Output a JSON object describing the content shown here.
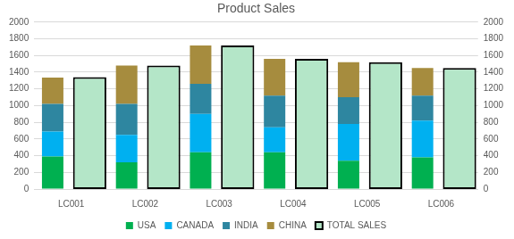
{
  "chart_data": {
    "type": "bar",
    "title": "Product Sales",
    "categories": [
      "LC001",
      "LC002",
      "LC003",
      "LC004",
      "LC005",
      "LC006"
    ],
    "series": [
      {
        "name": "USA",
        "color": "#00b050",
        "values": [
          390,
          320,
          440,
          440,
          340,
          380
        ]
      },
      {
        "name": "CANADA",
        "color": "#00b0f0",
        "values": [
          300,
          330,
          460,
          300,
          440,
          440
        ]
      },
      {
        "name": "INDIA",
        "color": "#2e86a0",
        "values": [
          330,
          370,
          360,
          380,
          320,
          300
        ]
      },
      {
        "name": "CHINA",
        "color": "#a68c3e",
        "values": [
          315,
          460,
          460,
          440,
          420,
          330
        ]
      },
      {
        "name": "TOTAL SALES",
        "color": "#b4e6c8",
        "axis": "y2",
        "values": [
          1340,
          1480,
          1720,
          1560,
          1520,
          1450
        ]
      }
    ],
    "stacked": true,
    "ylim": [
      0,
      2000
    ],
    "yticks": [
      0,
      200,
      400,
      600,
      800,
      1000,
      1200,
      1400,
      1600,
      1800,
      2000
    ],
    "y2lim": [
      0,
      2000
    ],
    "y2ticks": [
      0,
      200,
      400,
      600,
      800,
      1000,
      1200,
      1400,
      1600,
      1800,
      2000
    ],
    "grid": true,
    "legend": "bottom"
  }
}
